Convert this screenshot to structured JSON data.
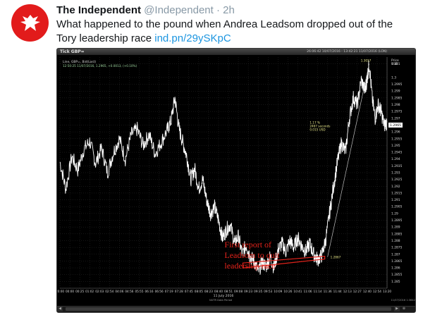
{
  "tweet": {
    "author_name": "The Independent",
    "author_handle": "@Independent",
    "separator": "·",
    "time": "2h",
    "text_before": "What happened to the pound when Andrea Leadsom dropped out of the Tory leadership race",
    "link": "ind.pn/29ySKpC",
    "colors": {
      "brand": "#e21b1b",
      "link": "#1b95e0",
      "muted": "#8899a6",
      "text": "#14171a"
    }
  },
  "chart_window": {
    "title": "Tick GBP=",
    "window_time": "26:06:42 10/07/2016 - 13:42:21 11/07/2016 (LON)",
    "legend_line1": "Line, GBP=, Bid(Last)",
    "legend_line2": "12:50:25 11/07/2016, 1.2965, +0.0013, (+0.10%)",
    "footer_left": "NUTR Data Period",
    "footer_right": "11/07/2016 1:3642",
    "x_date_label": "11 July 2016",
    "right_axis_header": "Price\nUSD",
    "colors": {
      "background": "#000000",
      "price_line": "#ffffff",
      "grid": "#3a3a3a",
      "annotation": "#e3231b"
    }
  },
  "chart_data": {
    "type": "line",
    "series_name": "GBP=",
    "x_ticks": [
      "20:00",
      "00:00",
      "00:25",
      "01:02",
      "02:03",
      "02:54",
      "04:06",
      "04:56",
      "05:55",
      "06:16",
      "06:56",
      "07:19",
      "07:28",
      "07:45",
      "08:05",
      "08:23",
      "08:40",
      "08:51",
      "09:08",
      "09:23",
      "09:35",
      "09:53",
      "10:09",
      "10:26",
      "10:41",
      "11:06",
      "11:14",
      "11:36",
      "11:44",
      "12:13",
      "12:27",
      "12:40",
      "12:54",
      "13:20"
    ],
    "y_ticks": [
      "1.301",
      "1.3",
      "1.2995",
      "1.299",
      "1.2985",
      "1.298",
      "1.2975",
      "1.297",
      "1.2965",
      "1.296",
      "1.2955",
      "1.295",
      "1.2945",
      "1.294",
      "1.2935",
      "1.293",
      "1.2925",
      "1.292",
      "1.2915",
      "1.291",
      "1.2905",
      "1.29",
      "1.2895",
      "1.289",
      "1.2885",
      "1.288",
      "1.2875",
      "1.287",
      "1.2865",
      "1.286",
      "1.2855",
      "1.285"
    ],
    "ylim": [
      1.2845,
      1.3015
    ],
    "x_axis": "time_index_0_to_33",
    "points": [
      [
        0.0,
        1.2938
      ],
      [
        0.6,
        1.2918
      ],
      [
        1.2,
        1.2942
      ],
      [
        1.8,
        1.2932
      ],
      [
        2.4,
        1.2947
      ],
      [
        3.0,
        1.2953
      ],
      [
        3.6,
        1.2937
      ],
      [
        4.2,
        1.2948
      ],
      [
        4.8,
        1.293
      ],
      [
        5.4,
        1.2945
      ],
      [
        6.0,
        1.2955
      ],
      [
        6.6,
        1.294
      ],
      [
        7.2,
        1.2958
      ],
      [
        7.8,
        1.2962
      ],
      [
        8.4,
        1.295
      ],
      [
        9.0,
        1.2958
      ],
      [
        9.6,
        1.2944
      ],
      [
        10.2,
        1.2952
      ],
      [
        10.8,
        1.2961
      ],
      [
        11.2,
        1.2968
      ],
      [
        11.6,
        1.2985
      ],
      [
        12.0,
        1.2963
      ],
      [
        12.4,
        1.2952
      ],
      [
        12.8,
        1.2942
      ],
      [
        13.2,
        1.2925
      ],
      [
        13.6,
        1.2933
      ],
      [
        14.0,
        1.2918
      ],
      [
        14.4,
        1.2925
      ],
      [
        14.8,
        1.291
      ],
      [
        15.2,
        1.29
      ],
      [
        15.6,
        1.2905
      ],
      [
        16.0,
        1.2895
      ],
      [
        16.4,
        1.2882
      ],
      [
        16.8,
        1.2888
      ],
      [
        17.2,
        1.2892
      ],
      [
        17.6,
        1.2878
      ],
      [
        18.0,
        1.2883
      ],
      [
        18.4,
        1.287
      ],
      [
        18.8,
        1.2877
      ],
      [
        19.2,
        1.2868
      ],
      [
        19.6,
        1.2865
      ],
      [
        20.0,
        1.2857
      ],
      [
        20.4,
        1.2864
      ],
      [
        20.8,
        1.2861
      ],
      [
        21.2,
        1.2868
      ],
      [
        21.6,
        1.286
      ],
      [
        22.0,
        1.2873
      ],
      [
        22.4,
        1.2878
      ],
      [
        22.8,
        1.2872
      ],
      [
        23.2,
        1.288
      ],
      [
        23.6,
        1.2875
      ],
      [
        24.0,
        1.2882
      ],
      [
        24.4,
        1.2876
      ],
      [
        24.8,
        1.2872
      ],
      [
        25.2,
        1.2878
      ],
      [
        25.6,
        1.287
      ],
      [
        26.0,
        1.2866
      ],
      [
        26.4,
        1.2869
      ],
      [
        26.8,
        1.288
      ],
      [
        27.2,
        1.29
      ],
      [
        27.6,
        1.292
      ],
      [
        28.0,
        1.2938
      ],
      [
        28.4,
        1.2952
      ],
      [
        28.8,
        1.2945
      ],
      [
        29.2,
        1.297
      ],
      [
        29.6,
        1.2985
      ],
      [
        30.0,
        1.298
      ],
      [
        30.4,
        1.2998
      ],
      [
        30.8,
        1.299
      ],
      [
        31.0,
        1.3
      ],
      [
        31.2,
        1.301
      ],
      [
        31.5,
        1.2985
      ],
      [
        31.8,
        1.297
      ],
      [
        32.1,
        1.298
      ],
      [
        32.4,
        1.2975
      ],
      [
        32.7,
        1.2965
      ],
      [
        33.0,
        1.2967
      ]
    ],
    "straight_line": [
      [
        27.0,
        1.2868
      ],
      [
        31.2,
        1.301
      ]
    ],
    "labels": {
      "low_value": "1.2867",
      "high_value": "1.3017",
      "measure": [
        "1.17 %",
        "2467 seconds",
        "0.015 USD"
      ],
      "last_price": "1.2965"
    },
    "annotation": "First report of\nLeadsom to quit\nleadership race",
    "annotation_target_index": 21.3
  }
}
